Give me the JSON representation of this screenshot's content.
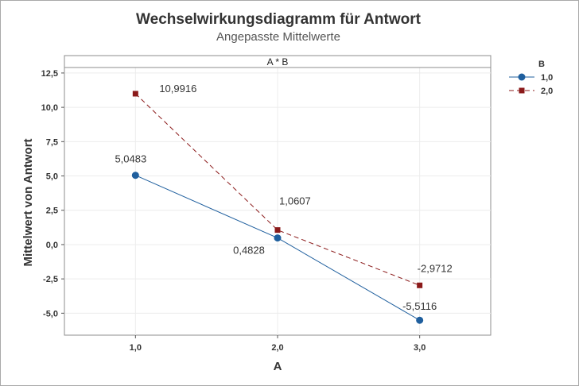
{
  "chart_data": {
    "type": "line",
    "title": "Wechselwirkungsdiagramm für Antwort",
    "subtitle": "Angepasste Mittelwerte",
    "panel_label": "A * B",
    "xlabel": "A",
    "ylabel": "Mittelwert von Antwort",
    "categories": [
      "1,0",
      "2,0",
      "3,0"
    ],
    "x": [
      1.0,
      2.0,
      3.0
    ],
    "xlim": [
      0.5,
      3.5
    ],
    "ylim": [
      -6.6,
      12.9
    ],
    "yticks": [
      -5.0,
      -2.5,
      0.0,
      2.5,
      5.0,
      7.5,
      10.0,
      12.5
    ],
    "ytick_labels": [
      "-5,0",
      "-2,5",
      "0,0",
      "2,5",
      "5,0",
      "7,5",
      "10,0",
      "12,5"
    ],
    "grid": true,
    "legend_title": "B",
    "legend_position": "top-right",
    "series": [
      {
        "name": "1,0",
        "values": [
          5.0483,
          0.4828,
          -5.5116
        ],
        "labels": [
          "5,0483",
          "0,4828",
          "-5,5116"
        ],
        "color": "#1f5f9e",
        "marker": "circle",
        "line_style": "solid"
      },
      {
        "name": "2,0",
        "values": [
          10.9916,
          1.0607,
          -2.9712
        ],
        "labels": [
          "10,9916",
          "1,0607",
          "-2,9712"
        ],
        "color": "#8b1a1a",
        "marker": "square",
        "line_style": "dashed"
      }
    ]
  }
}
